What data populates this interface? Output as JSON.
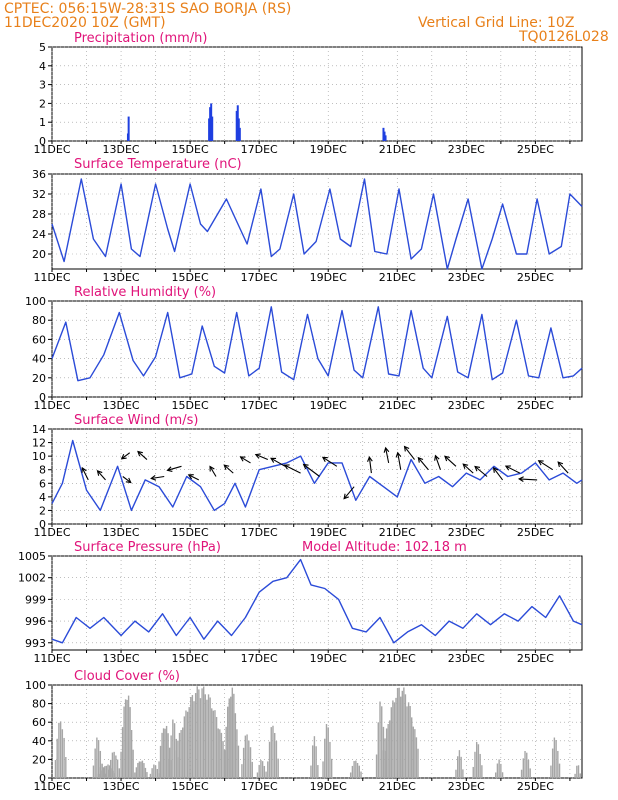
{
  "header": {
    "line1": "CPTEC:   056:15W-28:31S   SAO BORJA (RS)",
    "line2": "11DEC2020 10Z (GMT)",
    "grid_note": "Vertical Grid Line: 10Z",
    "code": "TQ0126L028",
    "model_altitude": "Model Altitude: 102.18 m"
  },
  "colors": {
    "line": "#2b4bd8",
    "bar": "#1f3fe0",
    "cloud": "#a6a6a6",
    "title": "#e0147a",
    "header": "#e8801a"
  },
  "x_ticks": [
    "11DEC",
    "13DEC",
    "15DEC",
    "17DEC",
    "19DEC",
    "21DEC",
    "23DEC",
    "25DEC"
  ],
  "chart_data": [
    {
      "type": "bar",
      "title": "Precipitation (mm/h)",
      "ylim": [
        0,
        5
      ],
      "yticks": [
        "0",
        "1",
        "2",
        "3",
        "4",
        "5"
      ],
      "x_days": [
        2.2,
        2.22,
        4.55,
        4.58,
        4.61,
        4.64,
        5.35,
        5.38,
        5.41,
        5.44,
        9.6,
        9.63,
        9.66
      ],
      "values": [
        0.4,
        1.3,
        1.2,
        1.8,
        2.0,
        1.3,
        1.6,
        1.9,
        1.2,
        0.7,
        0.7,
        0.5,
        0.3
      ]
    },
    {
      "type": "line",
      "title": "Surface Temperature (nC)",
      "ylim": [
        17,
        36
      ],
      "yticks": [
        "20",
        "24",
        "28",
        "32",
        "36"
      ],
      "x_days": [
        0,
        0.35,
        0.85,
        1.2,
        1.55,
        2.0,
        2.3,
        2.55,
        3.0,
        3.35,
        3.55,
        4.0,
        4.3,
        4.5,
        5.05,
        5.45,
        5.65,
        6.05,
        6.35,
        6.6,
        7.0,
        7.3,
        7.65,
        8.05,
        8.35,
        8.65,
        9.05,
        9.35,
        9.7,
        10.05,
        10.4,
        10.7,
        11.05,
        11.45,
        11.7,
        12.05,
        12.45,
        12.75,
        13.05,
        13.45,
        13.75,
        14.05,
        14.4,
        14.75,
        15.0,
        15.35
      ],
      "values": [
        26,
        18.5,
        35,
        23,
        19.5,
        34,
        21,
        19.5,
        34,
        25,
        20.5,
        34,
        26,
        24.5,
        31,
        25,
        22,
        33,
        19.5,
        21,
        32,
        20,
        22.5,
        33,
        23,
        21.5,
        35,
        20.5,
        20,
        33,
        19,
        21,
        32,
        17,
        23,
        31,
        17,
        23,
        30,
        20,
        20,
        31,
        20,
        21.5,
        32,
        29.5
      ]
    },
    {
      "type": "line",
      "title": "Relative Humidity (%)",
      "ylim": [
        0,
        100
      ],
      "yticks": [
        "0",
        "20",
        "40",
        "60",
        "80",
        "100"
      ],
      "x_days": [
        0,
        0.4,
        0.75,
        1.1,
        1.5,
        1.95,
        2.35,
        2.65,
        3.0,
        3.35,
        3.7,
        4.05,
        4.35,
        4.7,
        5.0,
        5.35,
        5.7,
        6.0,
        6.35,
        6.65,
        7.0,
        7.4,
        7.7,
        8.0,
        8.4,
        8.75,
        9.0,
        9.45,
        9.75,
        10.05,
        10.4,
        10.75,
        11.0,
        11.45,
        11.75,
        12.05,
        12.45,
        12.75,
        13.05,
        13.45,
        13.8,
        14.1,
        14.45,
        14.8,
        15.1,
        15.35
      ],
      "values": [
        40,
        78,
        17,
        20,
        44,
        88,
        38,
        22,
        42,
        88,
        20,
        24,
        74,
        32,
        25,
        88,
        22,
        30,
        94,
        26,
        18,
        86,
        40,
        22,
        90,
        28,
        20,
        94,
        24,
        22,
        90,
        30,
        20,
        84,
        26,
        20,
        86,
        18,
        25,
        80,
        22,
        20,
        72,
        20,
        22,
        30
      ]
    },
    {
      "type": "line",
      "title": "Surface Wind (m/s)",
      "ylim": [
        0,
        14
      ],
      "yticks": [
        "0",
        "2",
        "4",
        "6",
        "8",
        "10",
        "12",
        "14"
      ],
      "x_days": [
        0,
        0.3,
        0.6,
        1.0,
        1.4,
        1.9,
        2.3,
        2.7,
        3.1,
        3.5,
        3.9,
        4.3,
        4.7,
        5.0,
        5.3,
        5.6,
        6.0,
        6.4,
        6.8,
        7.2,
        7.6,
        8.0,
        8.4,
        8.8,
        9.2,
        9.6,
        10.0,
        10.4,
        10.8,
        11.2,
        11.6,
        12.0,
        12.4,
        12.8,
        13.2,
        13.6,
        14.0,
        14.4,
        14.8,
        15.2,
        15.35
      ],
      "values": [
        3,
        6,
        12.3,
        5,
        2,
        8.5,
        2,
        6.5,
        5.5,
        2.5,
        7,
        5.5,
        2,
        3,
        6,
        2.5,
        8,
        8.5,
        9,
        10,
        6,
        9,
        9,
        3.5,
        7,
        5.5,
        4,
        9.5,
        6,
        7,
        5.5,
        7.5,
        6.5,
        8.5,
        7,
        7.5,
        9,
        6.5,
        7.5,
        6,
        6.5
      ],
      "arrows": [
        {
          "day": 1.05,
          "v": 6.5,
          "dx": -6,
          "dy": -12
        },
        {
          "day": 1.55,
          "v": 6.5,
          "dx": -8,
          "dy": -9
        },
        {
          "day": 2.05,
          "v": 7.0,
          "dx": 8,
          "dy": 6
        },
        {
          "day": 2.25,
          "v": 10.5,
          "dx": -8,
          "dy": 6
        },
        {
          "day": 2.75,
          "v": 9.5,
          "dx": -9,
          "dy": -8
        },
        {
          "day": 3.25,
          "v": 7.0,
          "dx": -13,
          "dy": 2
        },
        {
          "day": 3.75,
          "v": 8.5,
          "dx": -14,
          "dy": 4
        },
        {
          "day": 4.25,
          "v": 6.5,
          "dx": -10,
          "dy": -5
        },
        {
          "day": 4.75,
          "v": 7.0,
          "dx": -6,
          "dy": -10
        },
        {
          "day": 5.25,
          "v": 7.5,
          "dx": -9,
          "dy": -8
        },
        {
          "day": 5.75,
          "v": 9.0,
          "dx": -10,
          "dy": -6
        },
        {
          "day": 6.25,
          "v": 9.5,
          "dx": -12,
          "dy": -5
        },
        {
          "day": 6.75,
          "v": 8.5,
          "dx": -14,
          "dy": -8
        },
        {
          "day": 7.2,
          "v": 7.5,
          "dx": -16,
          "dy": -8
        },
        {
          "day": 7.75,
          "v": 7.0,
          "dx": -16,
          "dy": -12
        },
        {
          "day": 8.25,
          "v": 8.5,
          "dx": -14,
          "dy": -9
        },
        {
          "day": 8.75,
          "v": 5.5,
          "dx": -10,
          "dy": 12
        },
        {
          "day": 9.25,
          "v": 7.5,
          "dx": -2,
          "dy": -16
        },
        {
          "day": 9.75,
          "v": 9.0,
          "dx": -3,
          "dy": -15
        },
        {
          "day": 10.1,
          "v": 8.0,
          "dx": -3,
          "dy": -17
        },
        {
          "day": 10.5,
          "v": 9.5,
          "dx": -10,
          "dy": -13
        },
        {
          "day": 10.9,
          "v": 8.0,
          "dx": -10,
          "dy": -12
        },
        {
          "day": 11.25,
          "v": 8.0,
          "dx": -5,
          "dy": -14
        },
        {
          "day": 11.7,
          "v": 8.5,
          "dx": -11,
          "dy": -10
        },
        {
          "day": 12.2,
          "v": 7.5,
          "dx": -10,
          "dy": -9
        },
        {
          "day": 12.6,
          "v": 7.0,
          "dx": -12,
          "dy": -10
        },
        {
          "day": 13.05,
          "v": 6.5,
          "dx": -9,
          "dy": -12
        },
        {
          "day": 13.55,
          "v": 7.5,
          "dx": -14,
          "dy": -7
        },
        {
          "day": 14.05,
          "v": 6.5,
          "dx": -18,
          "dy": -1
        },
        {
          "day": 14.5,
          "v": 8.0,
          "dx": -14,
          "dy": -9
        },
        {
          "day": 14.95,
          "v": 7.5,
          "dx": -10,
          "dy": -11
        }
      ]
    },
    {
      "type": "line",
      "title": "Surface Pressure (hPa)",
      "ylim": [
        992,
        1005
      ],
      "yticks": [
        "993",
        "996",
        "999",
        "1002",
        "1005"
      ],
      "x_days": [
        0,
        0.3,
        0.7,
        1.1,
        1.5,
        2.0,
        2.4,
        2.8,
        3.2,
        3.6,
        4.0,
        4.4,
        4.8,
        5.2,
        5.6,
        6.0,
        6.4,
        6.8,
        7.2,
        7.5,
        7.9,
        8.3,
        8.7,
        9.1,
        9.5,
        9.9,
        10.3,
        10.7,
        11.1,
        11.5,
        11.9,
        12.3,
        12.7,
        13.1,
        13.5,
        13.9,
        14.3,
        14.7,
        15.1,
        15.35
      ],
      "values": [
        993.5,
        993,
        996.5,
        995,
        996.5,
        994,
        996,
        994.5,
        997,
        994,
        996.5,
        993.5,
        996,
        994,
        996.5,
        1000,
        1001.5,
        1002,
        1004.5,
        1001,
        1000.5,
        999,
        995,
        994.5,
        996.5,
        993,
        994.5,
        995.5,
        994,
        996,
        995,
        997,
        995.5,
        997,
        996,
        998,
        996.5,
        999.5,
        996,
        995.5
      ]
    },
    {
      "type": "bar",
      "title": "Cloud Cover (%)",
      "ylim": [
        0,
        100
      ],
      "yticks": [
        "0",
        "20",
        "40",
        "60",
        "80",
        "100"
      ],
      "ranges": [
        {
          "d0": 0.1,
          "d1": 0.4,
          "peak": 65
        },
        {
          "d0": 1.2,
          "d1": 1.45,
          "peak": 45
        },
        {
          "d0": 1.35,
          "d1": 1.55,
          "peak": 15
        },
        {
          "d0": 1.4,
          "d1": 1.8,
          "peak": 15
        },
        {
          "d0": 1.65,
          "d1": 1.95,
          "peak": 30
        },
        {
          "d0": 2.0,
          "d1": 2.35,
          "peak": 95
        },
        {
          "d0": 2.4,
          "d1": 2.75,
          "peak": 20
        },
        {
          "d0": 2.85,
          "d1": 3.1,
          "peak": 15
        },
        {
          "d0": 3.1,
          "d1": 3.45,
          "peak": 60
        },
        {
          "d0": 3.4,
          "d1": 3.65,
          "peak": 65
        },
        {
          "d0": 3.6,
          "d1": 5.0,
          "peak": 100
        },
        {
          "d0": 5.0,
          "d1": 5.4,
          "peak": 100
        },
        {
          "d0": 5.5,
          "d1": 5.8,
          "peak": 50
        },
        {
          "d0": 5.95,
          "d1": 6.2,
          "peak": 20
        },
        {
          "d0": 6.25,
          "d1": 6.55,
          "peak": 60
        },
        {
          "d0": 7.5,
          "d1": 7.7,
          "peak": 45
        },
        {
          "d0": 7.85,
          "d1": 8.1,
          "peak": 60
        },
        {
          "d0": 8.65,
          "d1": 8.95,
          "peak": 20
        },
        {
          "d0": 9.4,
          "d1": 9.65,
          "peak": 85
        },
        {
          "d0": 9.6,
          "d1": 10.6,
          "peak": 100
        },
        {
          "d0": 11.7,
          "d1": 11.9,
          "peak": 30
        },
        {
          "d0": 12.2,
          "d1": 12.45,
          "peak": 40
        },
        {
          "d0": 12.85,
          "d1": 13.05,
          "peak": 20
        },
        {
          "d0": 13.6,
          "d1": 13.85,
          "peak": 30
        },
        {
          "d0": 14.45,
          "d1": 14.7,
          "peak": 45
        },
        {
          "d0": 15.15,
          "d1": 15.3,
          "peak": 15
        }
      ]
    }
  ]
}
